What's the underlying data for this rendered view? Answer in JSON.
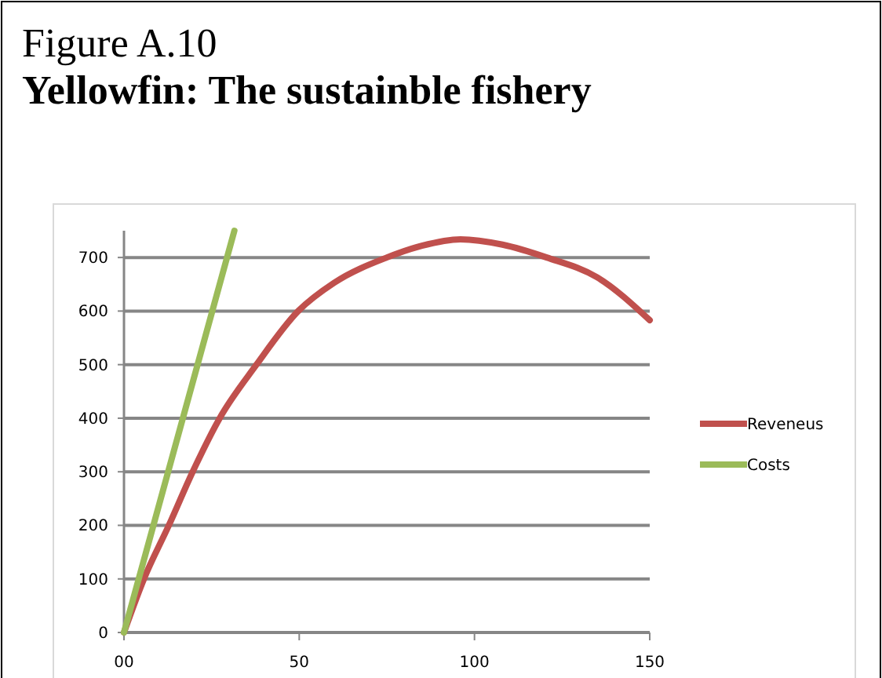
{
  "chart_data": {
    "type": "line",
    "title": "Figure A.10",
    "subtitle": "Yellowfin: The sustainble fishery",
    "xlim": [
      0,
      150
    ],
    "xticks": [
      {
        "value": 0,
        "label": "00"
      },
      50,
      100,
      150
    ],
    "ylim": [
      0,
      750
    ],
    "yticks": [
      0,
      100,
      200,
      300,
      400,
      500,
      600,
      700
    ],
    "grid": "y",
    "legend": "right",
    "marker": "none",
    "line_style": "solid",
    "series": [
      {
        "name": "Reveneus",
        "color": "#c0504d",
        "x": [
          0,
          5.7,
          12.8,
          19.6,
          27.3,
          37.8,
          49.7,
          60,
          75,
          85,
          96,
          108,
          120.6,
          135,
          150
        ],
        "values": [
          0,
          100,
          200,
          300,
          400,
          500,
          600,
          653,
          700,
          722,
          734,
          724,
          700,
          663,
          583
        ]
      },
      {
        "name": "Costs",
        "color": "#9bbb59",
        "x": [
          0,
          31.5
        ],
        "values": [
          0,
          750
        ]
      }
    ]
  }
}
